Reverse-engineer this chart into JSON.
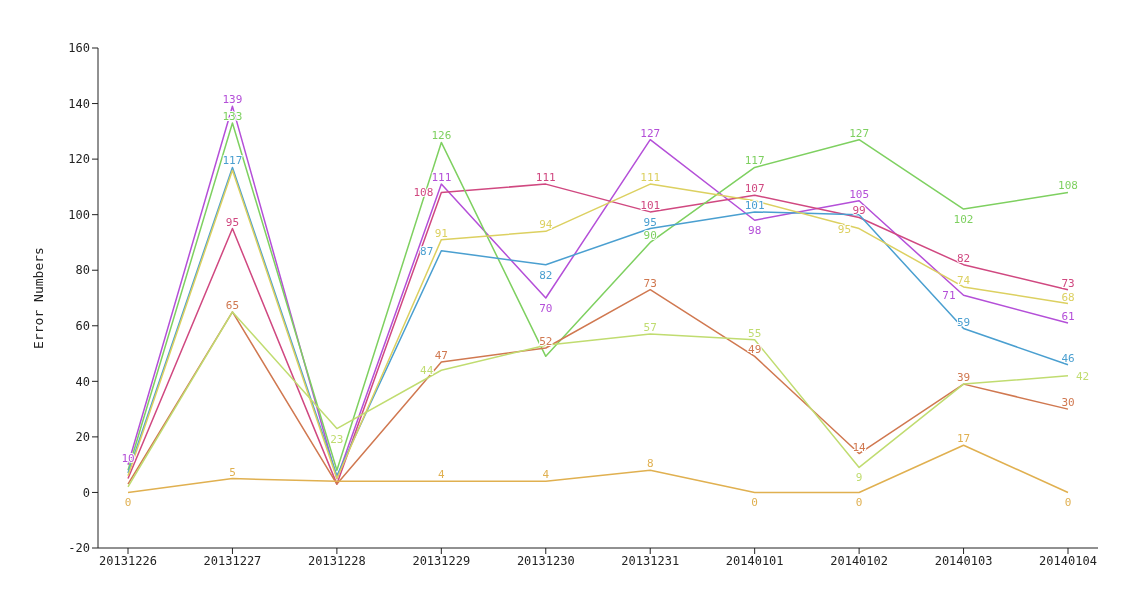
{
  "chart_data": {
    "type": "line",
    "ylabel": "Error Numbers",
    "categories": [
      "20131226",
      "20131227",
      "20131228",
      "20131229",
      "20131230",
      "20131231",
      "20140101",
      "20140102",
      "20140103",
      "20140104"
    ],
    "ylim": [
      -20,
      160
    ],
    "yticks": [
      -20,
      0,
      20,
      40,
      60,
      80,
      100,
      120,
      140,
      160
    ],
    "grid": false,
    "legend": false,
    "marker": "none",
    "line_style": "solid",
    "series": [
      {
        "color": "#b44fd8",
        "values": [
          10,
          139,
          5,
          111,
          70,
          127,
          98,
          105,
          71,
          61
        ],
        "value_labels": [
          "10",
          "139",
          null,
          "111",
          "70",
          "127",
          "98",
          "105",
          "71",
          "61"
        ]
      },
      {
        "color": "#d04880",
        "values": [
          5,
          95,
          3,
          108,
          111,
          101,
          107,
          99,
          82,
          73
        ],
        "value_labels": [
          null,
          "95",
          null,
          "108",
          "111",
          "101",
          "107",
          "99",
          "82",
          "73"
        ]
      },
      {
        "color": "#7ed060",
        "values": [
          8,
          133,
          8,
          126,
          49,
          90,
          117,
          127,
          102,
          108
        ],
        "value_labels": [
          null,
          "133",
          null,
          "126",
          null,
          "90",
          "117",
          "127",
          "102",
          "108"
        ]
      },
      {
        "color": "#4a9fd0",
        "values": [
          7,
          117,
          6,
          87,
          82,
          95,
          101,
          100,
          59,
          46
        ],
        "value_labels": [
          null,
          "117",
          null,
          "87",
          "82",
          "95",
          "101",
          null,
          "59",
          "46"
        ]
      },
      {
        "color": "#dcd060",
        "values": [
          6,
          116,
          5,
          91,
          94,
          111,
          105,
          95,
          74,
          68
        ],
        "value_labels": [
          null,
          null,
          null,
          "91",
          "94",
          "111",
          null,
          "95",
          "74",
          "68"
        ]
      },
      {
        "color": "#d07850",
        "values": [
          3,
          65,
          3,
          47,
          52,
          73,
          49,
          14,
          39,
          30
        ],
        "value_labels": [
          null,
          "65",
          null,
          "47",
          "52",
          "73",
          "49",
          "14",
          "39",
          "30"
        ]
      },
      {
        "color": "#c0dc70",
        "values": [
          2,
          65,
          23,
          44,
          53,
          57,
          55,
          9,
          39,
          42
        ],
        "value_labels": [
          null,
          null,
          "23",
          "44",
          null,
          "57",
          "55",
          "9",
          null,
          "42"
        ]
      },
      {
        "color": "#e0b050",
        "values": [
          0,
          5,
          4,
          4,
          4,
          8,
          0,
          0,
          17,
          0
        ],
        "value_labels": [
          "0",
          "5",
          null,
          "4",
          "4",
          "8",
          "0",
          "0",
          "17",
          "0"
        ]
      }
    ]
  }
}
